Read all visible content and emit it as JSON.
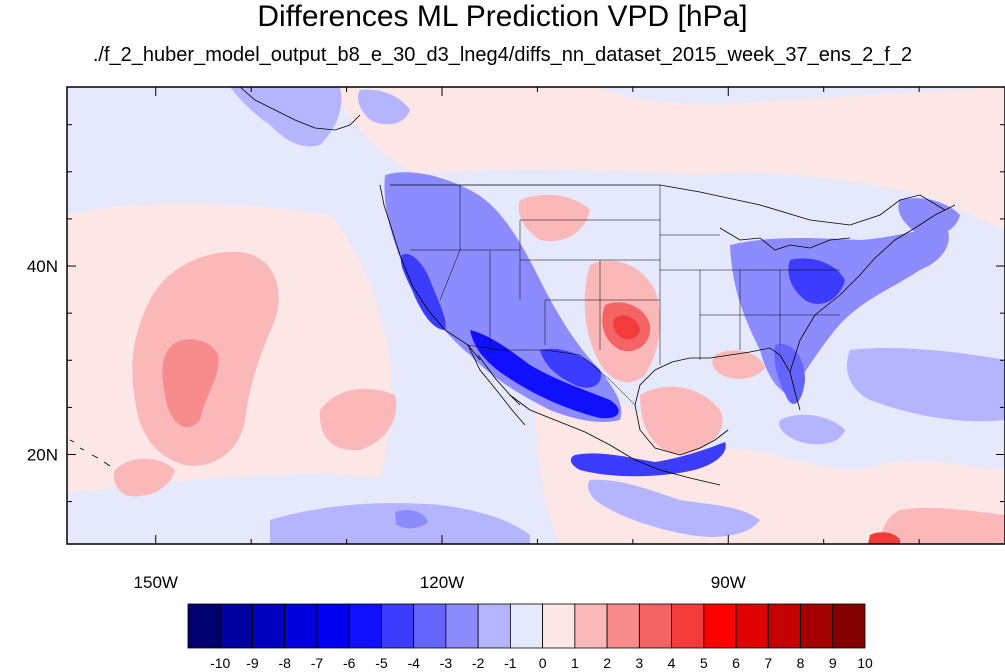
{
  "title": "Differences ML Prediction VPD [hPa]",
  "subtitle": "./f_2_huber_model_output_b8_e_30_d3_lneg4/diffs_nn_dataset_2015_week_37_ens_2_f_2",
  "axes": {
    "lon_ticks": [
      {
        "lon": -150,
        "label": "150W"
      },
      {
        "lon": -120,
        "label": "120W"
      },
      {
        "lon": -90,
        "label": "90W"
      }
    ],
    "lat_ticks": [
      {
        "lat": 40,
        "label": "40N"
      },
      {
        "lat": 20,
        "label": "20N"
      }
    ],
    "lon_range": [
      -159.3,
      -61.0
    ],
    "lat_range": [
      10.5,
      59.0
    ]
  },
  "colorbar": {
    "labels": [
      "-10",
      "-9",
      "-8",
      "-7",
      "-6",
      "-5",
      "-4",
      "-3",
      "-2",
      "-1",
      "0",
      "1",
      "2",
      "3",
      "4",
      "5",
      "6",
      "7",
      "8",
      "9",
      "10"
    ],
    "colors": [
      "#00006e",
      "#0000a0",
      "#0000c0",
      "#0000dc",
      "#0000f0",
      "#1010ff",
      "#3c3cff",
      "#6464ff",
      "#8c8cff",
      "#b4b4ff",
      "#e6e8fc",
      "#fde6e6",
      "#fbb8b8",
      "#f88c8c",
      "#f56464",
      "#f23c3c",
      "#ff0000",
      "#e00000",
      "#c40000",
      "#a40000",
      "#820000"
    ]
  },
  "colors": {
    "neutral_blue": "#e6e8fc",
    "neutral_pink": "#fde6e6"
  }
}
